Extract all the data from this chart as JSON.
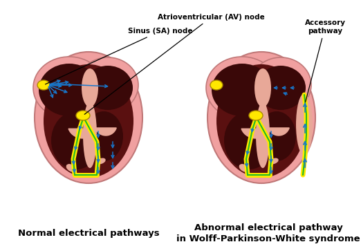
{
  "background_color": "#ffffff",
  "left_label": "Normal electrical pathways",
  "right_label_line1": "Abnormal electrical pathway",
  "right_label_line2": "in Wolff-Parkinson-White syndrome",
  "annotation_sa": "Sinus (SA) node",
  "annotation_av": "Atrioventricular (AV) node",
  "annotation_acc": "Accessory\npathway",
  "pink_outer": "#F0A0A0",
  "pink_mid": "#E89090",
  "dark_maroon": "#5A1010",
  "darker_maroon": "#3A0808",
  "pink_septum": "#E8A898",
  "yellow": "#FFE800",
  "blue": "#1878CC",
  "green": "#22BB22",
  "figsize": [
    5.22,
    3.63
  ],
  "dpi": 100
}
